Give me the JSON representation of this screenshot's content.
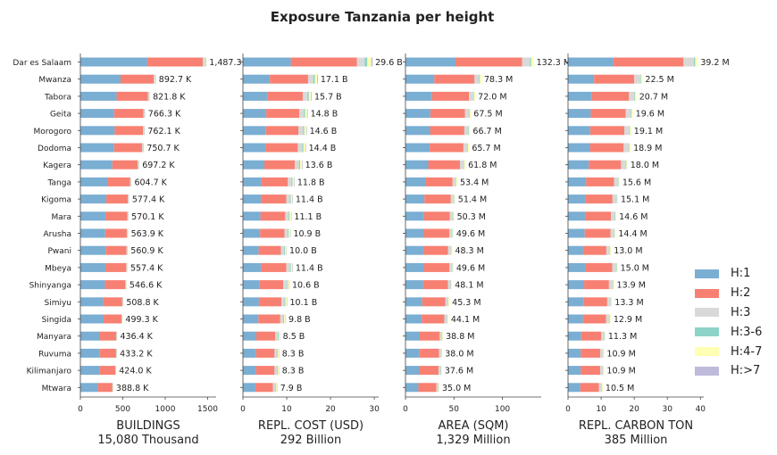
{
  "chart_data": {
    "type": "bar",
    "title": "Exposure Tanzania per height",
    "categories": [
      "Dar es Salaam",
      "Mwanza",
      "Tabora",
      "Geita",
      "Morogoro",
      "Dodoma",
      "Kagera",
      "Tanga",
      "Kigoma",
      "Mara",
      "Arusha",
      "Pwani",
      "Mbeya",
      "Shinyanga",
      "Simiyu",
      "Singida",
      "Manyara",
      "Ruvuma",
      "Kilimanjaro",
      "Mtwara"
    ],
    "legend": {
      "placement": "right",
      "entries": [
        {
          "label": "H:1",
          "color": "#7aaed3"
        },
        {
          "label": "H:2",
          "color": "#f88072"
        },
        {
          "label": "H:3",
          "color": "#d9d9d9"
        },
        {
          "label": "H:3-6",
          "color": "#8dd3c7"
        },
        {
          "label": "H:4-7",
          "color": "#ffffb3"
        },
        {
          "label": "H:>7",
          "color": "#bebada"
        }
      ]
    },
    "panels": [
      {
        "xlabel": "BUILDINGS",
        "total_label": "15,080 Thousand",
        "xlim": [
          0,
          1600
        ],
        "ticks": [
          0,
          500,
          1000,
          1500
        ],
        "tick_labels": [
          "0",
          "500",
          "1000",
          "1500"
        ],
        "totals": [
          1487.3,
          892.7,
          821.8,
          766.3,
          762.1,
          750.7,
          697.2,
          604.7,
          577.4,
          570.1,
          563.9,
          560.9,
          557.4,
          546.6,
          508.8,
          499.3,
          436.4,
          433.2,
          424.0,
          388.8
        ],
        "labels": [
          "1,487.3",
          "892.7 K",
          "821.8 K",
          "766.3 K",
          "762.1 K",
          "750.7 K",
          "697.2 K",
          "604.7 K",
          "577.4 K",
          "570.1 K",
          "563.9 K",
          "560.9 K",
          "557.4 K",
          "546.6 K",
          "508.8 K",
          "499.3 K",
          "436.4 K",
          "433.2 K",
          "424.0 K",
          "388.8 K"
        ],
        "shares": [
          [
            0.53,
            0.44,
            0.02,
            0.005,
            0.005,
            0
          ],
          [
            0.53,
            0.44,
            0.02,
            0.005,
            0.005,
            0
          ],
          [
            0.52,
            0.45,
            0.02,
            0.005,
            0.005,
            0
          ],
          [
            0.52,
            0.45,
            0.02,
            0.005,
            0.005,
            0
          ],
          [
            0.53,
            0.44,
            0.02,
            0.005,
            0.005,
            0
          ],
          [
            0.53,
            0.44,
            0.02,
            0.005,
            0.005,
            0
          ],
          [
            0.54,
            0.43,
            0.02,
            0.005,
            0.005,
            0
          ],
          [
            0.53,
            0.44,
            0.02,
            0.005,
            0.005,
            0
          ],
          [
            0.53,
            0.44,
            0.02,
            0.005,
            0.005,
            0
          ],
          [
            0.52,
            0.45,
            0.02,
            0.005,
            0.005,
            0
          ],
          [
            0.52,
            0.45,
            0.02,
            0.005,
            0.005,
            0
          ],
          [
            0.53,
            0.44,
            0.02,
            0.005,
            0.005,
            0
          ],
          [
            0.53,
            0.44,
            0.02,
            0.005,
            0.005,
            0
          ],
          [
            0.53,
            0.44,
            0.02,
            0.005,
            0.005,
            0
          ],
          [
            0.53,
            0.44,
            0.02,
            0.005,
            0.005,
            0
          ],
          [
            0.55,
            0.42,
            0.02,
            0.005,
            0.005,
            0
          ],
          [
            0.53,
            0.44,
            0.02,
            0.005,
            0.005,
            0
          ],
          [
            0.53,
            0.44,
            0.02,
            0.005,
            0.005,
            0
          ],
          [
            0.53,
            0.44,
            0.02,
            0.005,
            0.005,
            0
          ],
          [
            0.53,
            0.44,
            0.02,
            0.005,
            0.005,
            0
          ]
        ]
      },
      {
        "xlabel": "REPL. COST (USD)",
        "total_label": "292 Billion",
        "xlim": [
          0,
          31
        ],
        "ticks": [
          0,
          10,
          20,
          30
        ],
        "tick_labels": [
          "0",
          "10",
          "20",
          "30"
        ],
        "totals": [
          29.6,
          17.1,
          15.7,
          14.8,
          14.6,
          14.4,
          13.6,
          11.8,
          11.4,
          11.1,
          10.9,
          10.0,
          11.4,
          10.6,
          10.1,
          9.8,
          8.5,
          8.3,
          8.3,
          7.9
        ],
        "labels": [
          "29.6 B",
          "17.1 B",
          "15.7 B",
          "14.8 B",
          "14.6 B",
          "14.4 B",
          "13.6 B",
          "11.8 B",
          "11.4 B",
          "11.1 B",
          "10.9 B",
          "10.0 B",
          "11.4 B",
          "10.6 B",
          "10.1 B",
          "9.8 B",
          "8.5 B",
          "8.3 B",
          "8.3 B",
          "7.9 B"
        ],
        "shares": [
          [
            0.37,
            0.51,
            0.06,
            0.02,
            0.03,
            0.01
          ],
          [
            0.36,
            0.51,
            0.07,
            0.02,
            0.03,
            0.01
          ],
          [
            0.36,
            0.51,
            0.07,
            0.02,
            0.03,
            0.01
          ],
          [
            0.36,
            0.51,
            0.07,
            0.02,
            0.03,
            0.01
          ],
          [
            0.36,
            0.51,
            0.07,
            0.02,
            0.03,
            0.01
          ],
          [
            0.36,
            0.51,
            0.07,
            0.02,
            0.03,
            0.01
          ],
          [
            0.36,
            0.51,
            0.07,
            0.02,
            0.03,
            0.01
          ],
          [
            0.36,
            0.51,
            0.07,
            0.02,
            0.03,
            0.01
          ],
          [
            0.36,
            0.51,
            0.07,
            0.02,
            0.03,
            0.01
          ],
          [
            0.36,
            0.51,
            0.07,
            0.02,
            0.03,
            0.01
          ],
          [
            0.36,
            0.51,
            0.07,
            0.02,
            0.03,
            0.01
          ],
          [
            0.36,
            0.51,
            0.07,
            0.02,
            0.03,
            0.01
          ],
          [
            0.36,
            0.51,
            0.07,
            0.02,
            0.03,
            0.01
          ],
          [
            0.36,
            0.51,
            0.07,
            0.02,
            0.03,
            0.01
          ],
          [
            0.36,
            0.51,
            0.07,
            0.02,
            0.03,
            0.01
          ],
          [
            0.36,
            0.51,
            0.07,
            0.02,
            0.03,
            0.01
          ],
          [
            0.36,
            0.51,
            0.07,
            0.02,
            0.03,
            0.01
          ],
          [
            0.36,
            0.51,
            0.07,
            0.02,
            0.03,
            0.01
          ],
          [
            0.36,
            0.51,
            0.07,
            0.02,
            0.03,
            0.01
          ],
          [
            0.36,
            0.51,
            0.07,
            0.02,
            0.03,
            0.01
          ]
        ]
      },
      {
        "xlabel": "AREA (SQM)",
        "total_label": "1,329 Million",
        "xlim": [
          0,
          140
        ],
        "ticks": [
          0,
          50,
          100
        ],
        "tick_labels": [
          "0",
          "50",
          "100"
        ],
        "totals": [
          132.3,
          78.3,
          72.0,
          67.5,
          66.7,
          65.7,
          61.8,
          53.4,
          51.4,
          50.3,
          49.6,
          48.3,
          49.6,
          48.1,
          45.3,
          44.1,
          38.8,
          38.0,
          37.6,
          35.0
        ],
        "labels": [
          "132.3 M",
          "78.3 M",
          "72.0 M",
          "67.5 M",
          "66.7 M",
          "65.7 M",
          "61.8 M",
          "53.4 M",
          "51.4 M",
          "50.3 M",
          "49.6 M",
          "48.3 M",
          "49.6 M",
          "48.1 M",
          "45.3 M",
          "44.1 M",
          "38.8 M",
          "38.0 M",
          "37.6 M",
          "35.0 M"
        ],
        "shares": [
          [
            0.39,
            0.52,
            0.06,
            0.01,
            0.02,
            0
          ],
          [
            0.38,
            0.53,
            0.06,
            0.01,
            0.02,
            0
          ],
          [
            0.38,
            0.53,
            0.06,
            0.01,
            0.02,
            0
          ],
          [
            0.38,
            0.53,
            0.06,
            0.01,
            0.02,
            0
          ],
          [
            0.38,
            0.53,
            0.06,
            0.01,
            0.02,
            0
          ],
          [
            0.38,
            0.53,
            0.06,
            0.01,
            0.02,
            0
          ],
          [
            0.38,
            0.53,
            0.06,
            0.01,
            0.02,
            0
          ],
          [
            0.38,
            0.53,
            0.06,
            0.01,
            0.02,
            0
          ],
          [
            0.38,
            0.53,
            0.06,
            0.01,
            0.02,
            0
          ],
          [
            0.38,
            0.53,
            0.06,
            0.01,
            0.02,
            0
          ],
          [
            0.38,
            0.53,
            0.06,
            0.01,
            0.02,
            0
          ],
          [
            0.38,
            0.53,
            0.06,
            0.01,
            0.02,
            0
          ],
          [
            0.38,
            0.53,
            0.06,
            0.01,
            0.02,
            0
          ],
          [
            0.38,
            0.53,
            0.06,
            0.01,
            0.02,
            0
          ],
          [
            0.38,
            0.53,
            0.06,
            0.01,
            0.02,
            0
          ],
          [
            0.38,
            0.53,
            0.06,
            0.01,
            0.02,
            0
          ],
          [
            0.38,
            0.53,
            0.06,
            0.01,
            0.02,
            0
          ],
          [
            0.38,
            0.53,
            0.06,
            0.01,
            0.02,
            0
          ],
          [
            0.38,
            0.53,
            0.06,
            0.01,
            0.02,
            0
          ],
          [
            0.38,
            0.53,
            0.06,
            0.01,
            0.02,
            0
          ]
        ]
      },
      {
        "xlabel": "REPL. CARBON TON",
        "total_label": "385 Million",
        "xlim": [
          0,
          41
        ],
        "ticks": [
          0,
          10,
          20,
          30,
          40
        ],
        "tick_labels": [
          "0",
          "10",
          "20",
          "30",
          "40"
        ],
        "totals": [
          39.2,
          22.5,
          20.7,
          19.6,
          19.1,
          18.9,
          18.0,
          15.6,
          15.1,
          14.6,
          14.4,
          13.0,
          15.0,
          13.9,
          13.3,
          12.9,
          11.3,
          10.9,
          10.9,
          10.5
        ],
        "labels": [
          "39.2 M",
          "22.5 M",
          "20.7 M",
          "19.6 M",
          "19.1 M",
          "18.9 M",
          "18.0 M",
          "15.6 M",
          "15.1 M",
          "14.6 M",
          "14.4 M",
          "13.0 M",
          "15.0 M",
          "13.9 M",
          "13.3 M",
          "12.9 M",
          "11.3 M",
          "10.9 M",
          "10.9 M",
          "10.5 M"
        ],
        "shares": [
          [
            0.35,
            0.54,
            0.08,
            0.01,
            0.02,
            0
          ],
          [
            0.35,
            0.54,
            0.08,
            0.01,
            0.02,
            0
          ],
          [
            0.35,
            0.54,
            0.08,
            0.01,
            0.02,
            0
          ],
          [
            0.35,
            0.54,
            0.08,
            0.01,
            0.02,
            0
          ],
          [
            0.35,
            0.54,
            0.08,
            0.01,
            0.02,
            0
          ],
          [
            0.35,
            0.54,
            0.08,
            0.01,
            0.02,
            0
          ],
          [
            0.35,
            0.54,
            0.08,
            0.01,
            0.02,
            0
          ],
          [
            0.35,
            0.54,
            0.08,
            0.01,
            0.02,
            0
          ],
          [
            0.35,
            0.54,
            0.08,
            0.01,
            0.02,
            0
          ],
          [
            0.35,
            0.54,
            0.08,
            0.01,
            0.02,
            0
          ],
          [
            0.35,
            0.54,
            0.08,
            0.01,
            0.02,
            0
          ],
          [
            0.35,
            0.54,
            0.08,
            0.01,
            0.02,
            0
          ],
          [
            0.35,
            0.54,
            0.08,
            0.01,
            0.02,
            0
          ],
          [
            0.35,
            0.54,
            0.08,
            0.01,
            0.02,
            0
          ],
          [
            0.35,
            0.54,
            0.08,
            0.01,
            0.02,
            0
          ],
          [
            0.35,
            0.54,
            0.08,
            0.01,
            0.02,
            0
          ],
          [
            0.35,
            0.54,
            0.08,
            0.01,
            0.02,
            0
          ],
          [
            0.35,
            0.54,
            0.08,
            0.01,
            0.02,
            0
          ],
          [
            0.35,
            0.54,
            0.08,
            0.01,
            0.02,
            0
          ],
          [
            0.35,
            0.54,
            0.08,
            0.01,
            0.02,
            0
          ]
        ]
      }
    ]
  }
}
